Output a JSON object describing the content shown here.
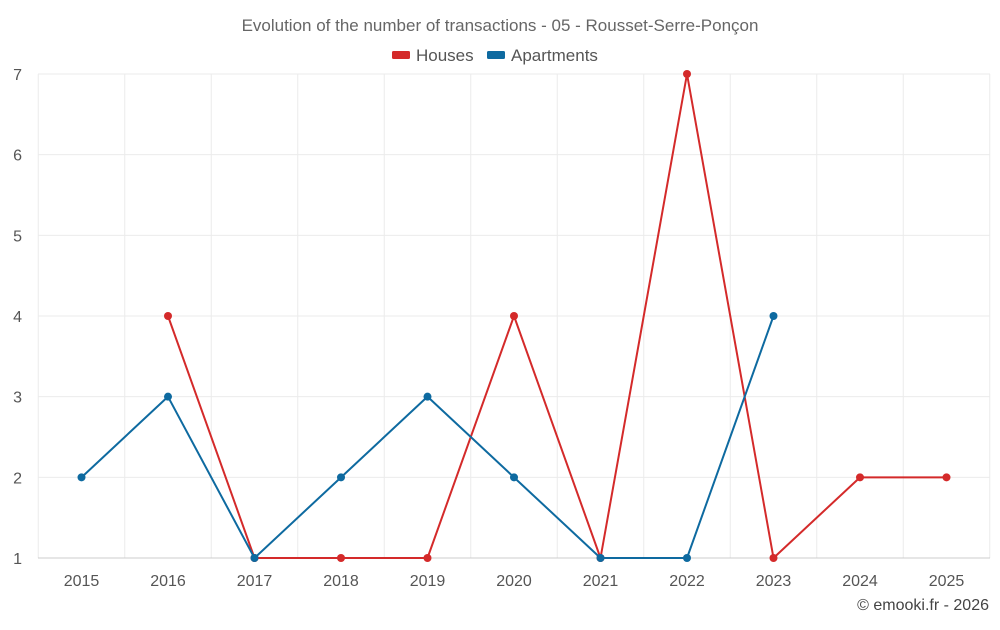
{
  "chart_data": {
    "type": "line",
    "title": "Evolution of the number of transactions - 05 - Rousset-Serre-Ponçon",
    "categories": [
      "2015",
      "2016",
      "2017",
      "2018",
      "2019",
      "2020",
      "2021",
      "2022",
      "2023",
      "2024",
      "2025"
    ],
    "yticks": [
      "1",
      "2",
      "3",
      "4",
      "5",
      "6",
      "7"
    ],
    "ylim": [
      1,
      7
    ],
    "grid": true,
    "legend_position": "top-center",
    "series": [
      {
        "name": "Houses",
        "color": "#d42a2a",
        "values": [
          null,
          4,
          1,
          1,
          1,
          4,
          1,
          7,
          1,
          2,
          2
        ]
      },
      {
        "name": "Apartments",
        "color": "#0e6aa0",
        "values": [
          2,
          3,
          1,
          2,
          3,
          2,
          1,
          1,
          4,
          null,
          null
        ]
      }
    ],
    "credit": "© emooki.fr - 2026"
  }
}
